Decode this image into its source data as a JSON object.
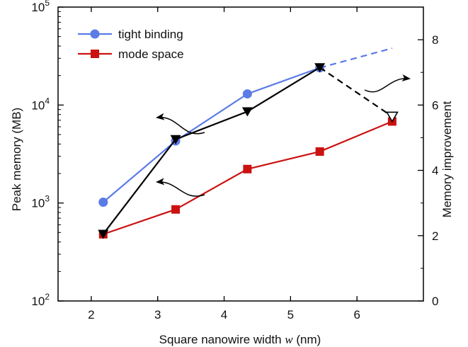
{
  "chart_data": {
    "type": "line",
    "x": [
      2.18,
      3.27,
      4.35,
      5.44,
      6.53
    ],
    "xlabel_prefix": "Square nanowire width ",
    "xlabel_var": "w",
    "xlabel_suffix": " (nm)",
    "xlim": [
      1.5,
      7.0
    ],
    "xticks": [
      2,
      3,
      4,
      5,
      6
    ],
    "ylabel_left": "Peak memory (MB)",
    "ylim_left": [
      100,
      100000
    ],
    "yscale_left": "log",
    "yticks_left": [
      {
        "value": 100,
        "base": "10",
        "exp": "2"
      },
      {
        "value": 1000,
        "base": "10",
        "exp": "3"
      },
      {
        "value": 10000,
        "base": "10",
        "exp": "4"
      },
      {
        "value": 100000,
        "base": "10",
        "exp": "5"
      }
    ],
    "ylabel_right": "Memory improvement",
    "ylim_right": [
      0,
      9
    ],
    "yticks_right": [
      0,
      2,
      4,
      6,
      8
    ],
    "legend_position": "top-left",
    "series": [
      {
        "name": "tight binding",
        "axis": "left",
        "color": "#5b7be6",
        "marker": "circle",
        "x": [
          2.18,
          3.27,
          4.35,
          5.44
        ],
        "values": [
          1020,
          4300,
          13000,
          24000
        ],
        "extrapolated": {
          "x": [
            5.44,
            6.53
          ],
          "values": [
            24000,
            38000
          ]
        }
      },
      {
        "name": "mode space",
        "axis": "left",
        "color": "#cc1111",
        "marker": "square",
        "x": [
          2.18,
          3.27,
          4.35,
          5.44,
          6.53
        ],
        "values": [
          480,
          860,
          2220,
          3350,
          6800
        ]
      },
      {
        "axis": "right",
        "color": "#000000",
        "marker": "triangle-down",
        "x": [
          2.18,
          3.27,
          4.35,
          5.44
        ],
        "values": [
          2.05,
          4.95,
          5.8,
          7.15
        ],
        "extrapolated": {
          "x": [
            5.44,
            6.53
          ],
          "values": [
            7.15,
            5.65
          ],
          "marker": "triangle-down-open"
        }
      }
    ]
  },
  "colors": {
    "axis": "#000000",
    "tight_binding": "#5b7be6",
    "mode_space": "#cc1111",
    "improvement": "#000000"
  }
}
